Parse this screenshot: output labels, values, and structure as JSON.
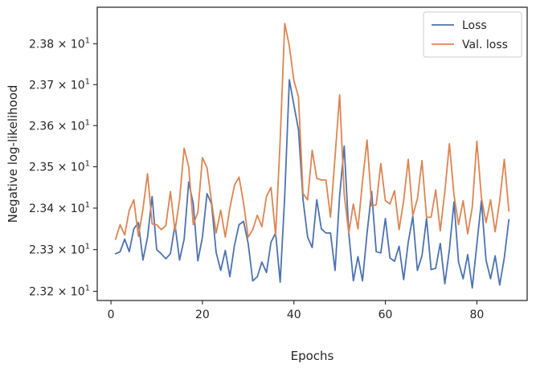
{
  "chart_data": {
    "type": "line",
    "title": "",
    "xlabel": "Epochs",
    "ylabel": "Negative log-likelihood",
    "xlim": [
      -3,
      91
    ],
    "ylim": [
      23.178,
      23.89
    ],
    "yscale": "log",
    "grid": false,
    "legend_position": "top-right",
    "x_ticks": [
      0,
      20,
      40,
      60,
      80
    ],
    "x_tick_labels": [
      "0",
      "20",
      "40",
      "60",
      "80"
    ],
    "y_ticks": [
      23.2,
      23.3,
      23.4,
      23.5,
      23.6,
      23.7,
      23.8
    ],
    "y_tick_mantissas": [
      "2.32",
      "2.33",
      "2.34",
      "2.35",
      "2.36",
      "2.37",
      "2.38"
    ],
    "y_tick_base": "10",
    "y_tick_exponent": "1",
    "y_tick_operator": "×",
    "x": [
      1,
      2,
      3,
      4,
      5,
      6,
      7,
      8,
      9,
      10,
      11,
      12,
      13,
      14,
      15,
      16,
      17,
      18,
      19,
      20,
      21,
      22,
      23,
      24,
      25,
      26,
      27,
      28,
      29,
      30,
      31,
      32,
      33,
      34,
      35,
      36,
      37,
      38,
      39,
      40,
      41,
      42,
      43,
      44,
      45,
      46,
      47,
      48,
      49,
      50,
      51,
      52,
      53,
      54,
      55,
      56,
      57,
      58,
      59,
      60,
      61,
      62,
      63,
      64,
      65,
      66,
      67,
      68,
      69,
      70,
      71,
      72,
      73,
      74,
      75,
      76,
      77,
      78,
      79,
      80,
      81,
      82,
      83,
      84,
      85,
      86,
      87
    ],
    "series": [
      {
        "name": "Loss",
        "color": "#4c72b0",
        "values": [
          23.29,
          23.295,
          23.325,
          23.295,
          23.35,
          23.365,
          23.275,
          23.33,
          23.428,
          23.3,
          23.29,
          23.278,
          23.29,
          23.36,
          23.275,
          23.325,
          23.463,
          23.41,
          23.273,
          23.33,
          23.435,
          23.41,
          23.293,
          23.25,
          23.298,
          23.235,
          23.31,
          23.36,
          23.368,
          23.315,
          23.225,
          23.235,
          23.27,
          23.245,
          23.318,
          23.34,
          23.222,
          23.43,
          23.712,
          23.65,
          23.59,
          23.42,
          23.33,
          23.305,
          23.42,
          23.35,
          23.34,
          23.34,
          23.25,
          23.43,
          23.55,
          23.34,
          23.225,
          23.283,
          23.225,
          23.34,
          23.44,
          23.295,
          23.292,
          23.375,
          23.28,
          23.272,
          23.308,
          23.228,
          23.318,
          23.38,
          23.25,
          23.285,
          23.375,
          23.252,
          23.255,
          23.315,
          23.218,
          23.3,
          23.415,
          23.27,
          23.23,
          23.288,
          23.208,
          23.312,
          23.418,
          23.275,
          23.23,
          23.285,
          23.215,
          23.28,
          23.372
        ]
      },
      {
        "name": "Val. loss",
        "color": "#dd8452",
        "values": [
          23.325,
          23.36,
          23.335,
          23.395,
          23.42,
          23.332,
          23.398,
          23.483,
          23.362,
          23.36,
          23.348,
          23.358,
          23.44,
          23.345,
          23.42,
          23.545,
          23.5,
          23.36,
          23.39,
          23.522,
          23.498,
          23.415,
          23.34,
          23.395,
          23.33,
          23.4,
          23.455,
          23.475,
          23.412,
          23.33,
          23.348,
          23.383,
          23.355,
          23.428,
          23.45,
          23.335,
          23.565,
          23.85,
          23.795,
          23.71,
          23.67,
          23.435,
          23.42,
          23.54,
          23.472,
          23.468,
          23.468,
          23.378,
          23.525,
          23.675,
          23.433,
          23.34,
          23.41,
          23.35,
          23.465,
          23.565,
          23.405,
          23.408,
          23.508,
          23.418,
          23.41,
          23.442,
          23.348,
          23.418,
          23.518,
          23.382,
          23.422,
          23.515,
          23.378,
          23.378,
          23.444,
          23.345,
          23.44,
          23.556,
          23.432,
          23.36,
          23.418,
          23.338,
          23.402,
          23.562,
          23.425,
          23.365,
          23.42,
          23.343,
          23.418,
          23.518,
          23.393
        ]
      }
    ]
  }
}
